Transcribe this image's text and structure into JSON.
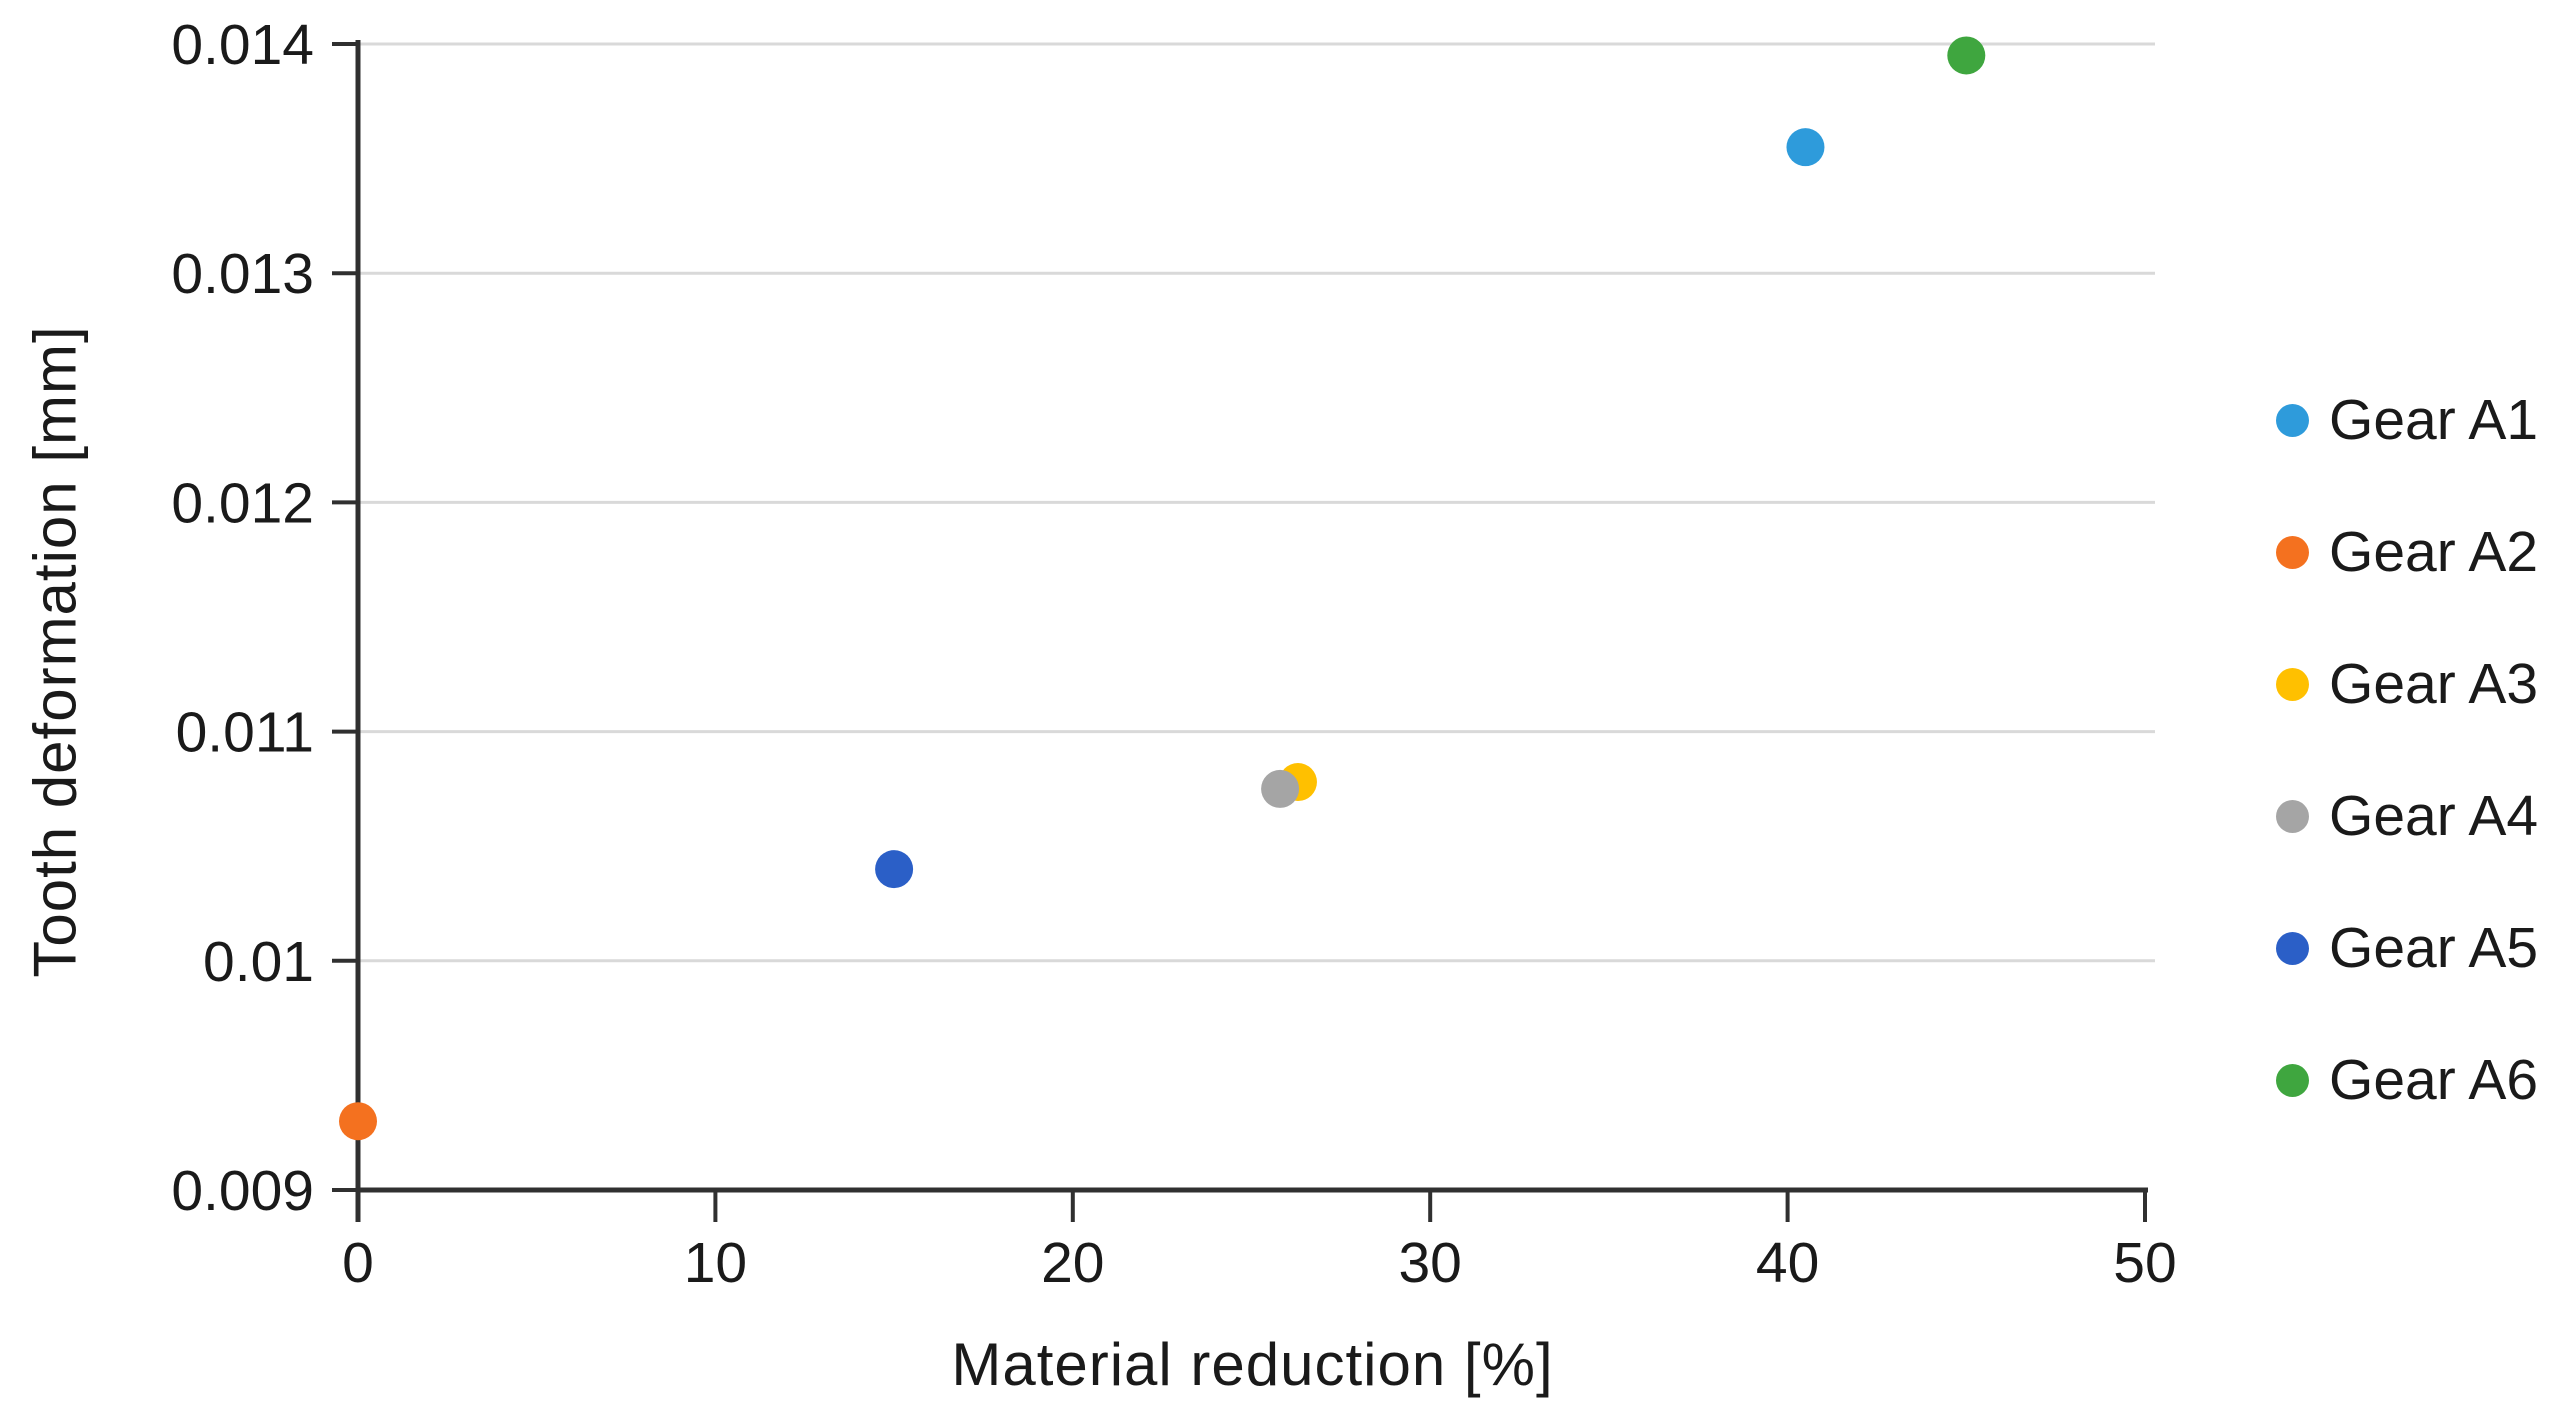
{
  "chart_data": {
    "type": "scatter",
    "title": "",
    "xlabel": "Material reduction [%]",
    "ylabel": "Tooth deformation [mm]",
    "xlim": [
      0,
      50
    ],
    "ylim": [
      0.009,
      0.014
    ],
    "x_ticks": [
      0,
      10,
      20,
      30,
      40,
      50
    ],
    "x_tick_labels": [
      "0",
      "10",
      "20",
      "30",
      "40",
      "50"
    ],
    "y_ticks": [
      0.009,
      0.01,
      0.011,
      0.012,
      0.013,
      0.014
    ],
    "y_tick_labels": [
      "0.009",
      "0.01",
      "0.011",
      "0.012",
      "0.013",
      "0.014"
    ],
    "grid": "horizontal-only",
    "legend_position": "right",
    "series": [
      {
        "name": "Gear A1",
        "color": "#2E9BDB",
        "points": [
          {
            "x": 40.5,
            "y": 0.01355
          }
        ]
      },
      {
        "name": "Gear A2",
        "color": "#F4711F",
        "points": [
          {
            "x": 0,
            "y": 0.0093
          }
        ]
      },
      {
        "name": "Gear A3",
        "color": "#FFC000",
        "points": [
          {
            "x": 26.3,
            "y": 0.01078
          }
        ]
      },
      {
        "name": "Gear A4",
        "color": "#A5A5A5",
        "points": [
          {
            "x": 25.8,
            "y": 0.01075
          }
        ]
      },
      {
        "name": "Gear A5",
        "color": "#2B5FC7",
        "points": [
          {
            "x": 15,
            "y": 0.0104
          }
        ]
      },
      {
        "name": "Gear A6",
        "color": "#3FA63F",
        "points": [
          {
            "x": 45,
            "y": 0.01395
          }
        ]
      }
    ],
    "colors": {
      "axis": "#303030",
      "gridline": "#D9D9D9",
      "text": "#1a1a1a",
      "background": "#FFFFFF"
    }
  }
}
